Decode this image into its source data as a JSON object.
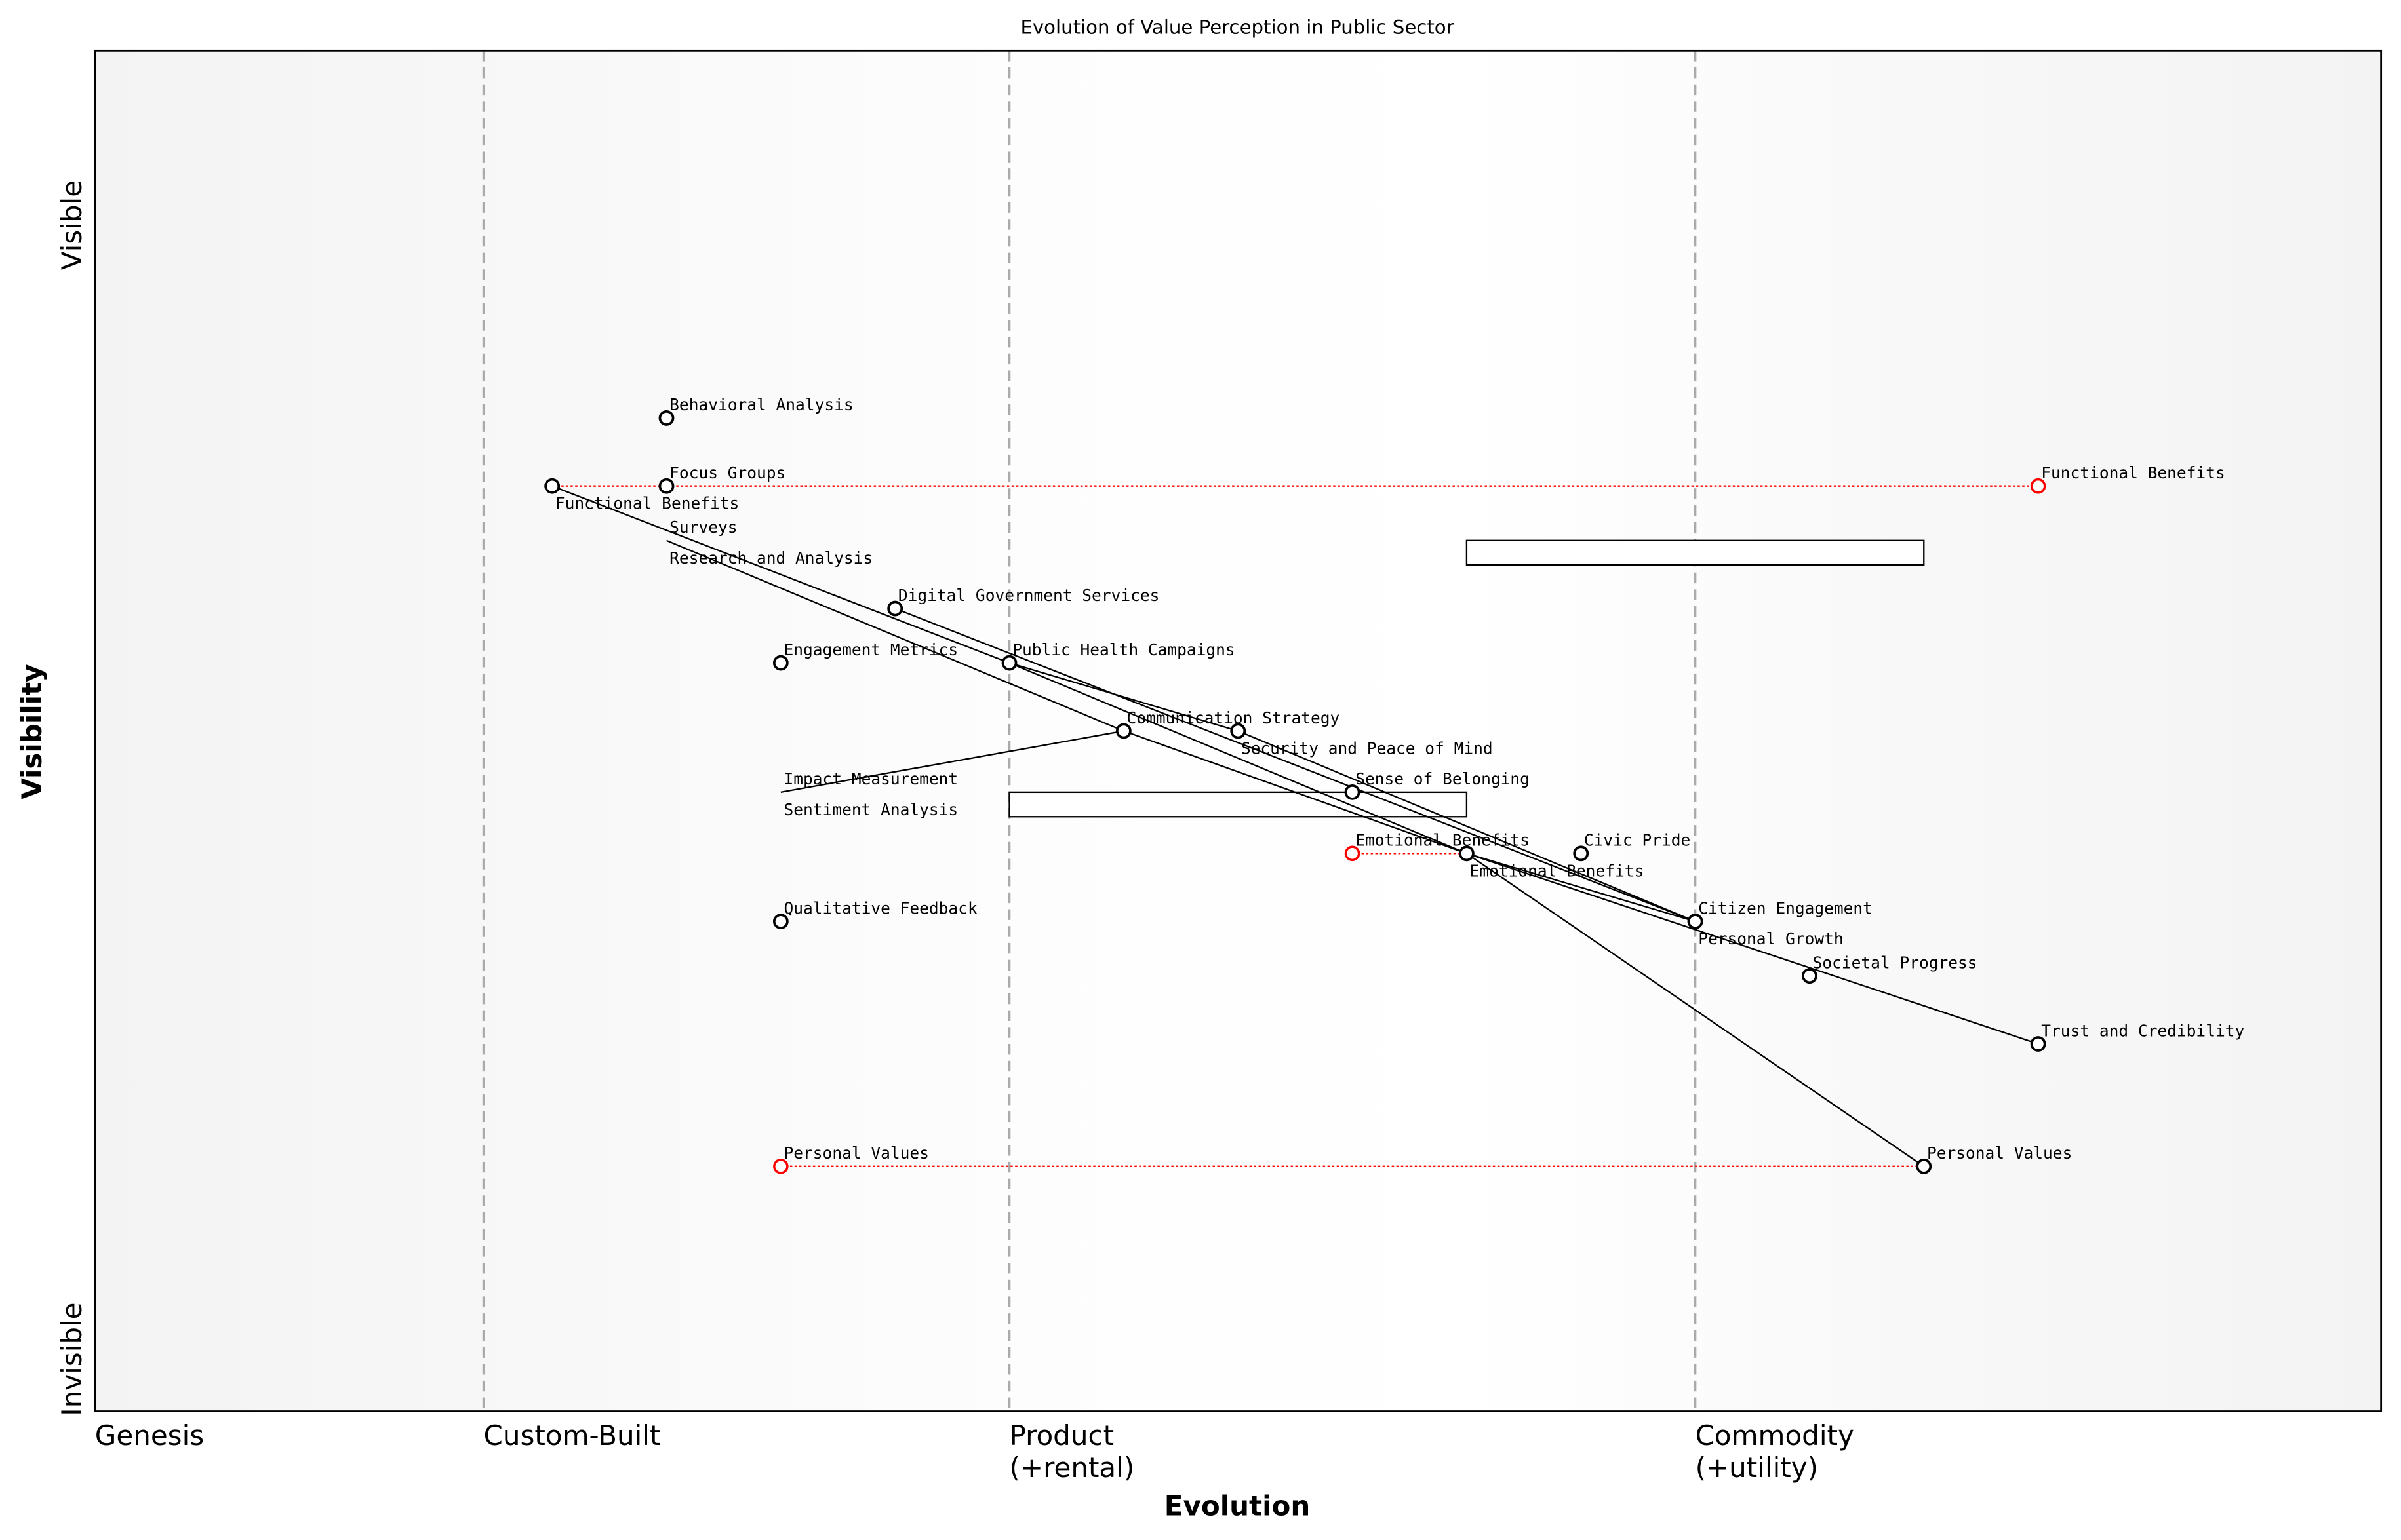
{
  "chart_data": {
    "type": "wardley-map",
    "title": "Evolution of Value Perception in Public Sector",
    "xlabel": "Evolution",
    "ylabel": "Visibility",
    "y_ticks": [
      "Visible",
      "Invisible"
    ],
    "stages": [
      {
        "label": "Genesis",
        "at": 0.0
      },
      {
        "label": "Custom-Built",
        "at": 0.17
      },
      {
        "label": "Product",
        "label2": "(+rental)",
        "at": 0.4
      },
      {
        "label": "Commodity",
        "label2": "(+utility)",
        "at": 0.7
      }
    ],
    "components": [
      {
        "name": "Behavioral Analysis",
        "evolution": 0.25,
        "visibility": 0.73,
        "marker": true
      },
      {
        "name": "Focus Groups",
        "evolution": 0.25,
        "visibility": 0.68,
        "marker": true
      },
      {
        "name": "Functional Benefits",
        "evolution": 0.2,
        "visibility": 0.68,
        "marker": true
      },
      {
        "name": "Surveys",
        "evolution": 0.25,
        "visibility": 0.64,
        "marker": false
      },
      {
        "name": "Research and Analysis",
        "evolution": 0.25,
        "visibility": 0.64,
        "marker": false
      },
      {
        "name": "Digital Government Services",
        "evolution": 0.35,
        "visibility": 0.59,
        "marker": true
      },
      {
        "name": "Engagement Metrics",
        "evolution": 0.3,
        "visibility": 0.55,
        "marker": true
      },
      {
        "name": "Public Health Campaigns",
        "evolution": 0.4,
        "visibility": 0.55,
        "marker": true
      },
      {
        "name": "Communication Strategy",
        "evolution": 0.45,
        "visibility": 0.5,
        "marker": true
      },
      {
        "name": "Security and Peace of Mind",
        "evolution": 0.5,
        "visibility": 0.5,
        "marker": true
      },
      {
        "name": "Impact Measurement",
        "evolution": 0.3,
        "visibility": 0.455,
        "marker": false
      },
      {
        "name": "Sentiment Analysis",
        "evolution": 0.3,
        "visibility": 0.455,
        "marker": false
      },
      {
        "name": "Sense of Belonging",
        "evolution": 0.55,
        "visibility": 0.455,
        "marker": true
      },
      {
        "name": "Emotional Benefits",
        "evolution": 0.6,
        "visibility": 0.41,
        "marker": true
      },
      {
        "name": "Civic Pride",
        "evolution": 0.65,
        "visibility": 0.41,
        "marker": true
      },
      {
        "name": "Citizen Engagement",
        "evolution": 0.7,
        "visibility": 0.36,
        "marker": true
      },
      {
        "name": "Personal Growth",
        "evolution": 0.7,
        "visibility": 0.36,
        "marker": true
      },
      {
        "name": "Qualitative Feedback",
        "evolution": 0.3,
        "visibility": 0.36,
        "marker": true
      },
      {
        "name": "Societal Progress",
        "evolution": 0.75,
        "visibility": 0.32,
        "marker": true
      },
      {
        "name": "Trust and Credibility",
        "evolution": 0.85,
        "visibility": 0.27,
        "marker": true
      },
      {
        "name": "Personal Values",
        "evolution": 0.8,
        "visibility": 0.18,
        "marker": true
      }
    ],
    "evolve": [
      {
        "name": "Functional Benefits",
        "from": 0.2,
        "to": 0.85,
        "visibility": 0.68
      },
      {
        "name": "Emotional Benefits",
        "from": 0.55,
        "to": 0.6,
        "visibility": 0.41
      },
      {
        "name": "Personal Values",
        "from": 0.3,
        "to": 0.8,
        "visibility": 0.18
      }
    ],
    "links": [
      [
        "Functional Benefits",
        "Public Health Campaigns"
      ],
      [
        "Public Health Campaigns",
        "Security and Peace of Mind"
      ],
      [
        "Public Health Campaigns",
        "Emotional Benefits"
      ],
      [
        "Digital Government Services",
        "Citizen Engagement"
      ],
      [
        "Research and Analysis",
        "Communication Strategy"
      ],
      [
        "Sentiment Analysis",
        "Communication Strategy"
      ],
      [
        "Communication Strategy",
        "Emotional Benefits"
      ],
      [
        "Security and Peace of Mind",
        "Citizen Engagement"
      ],
      [
        "Emotional Benefits",
        "Personal Growth"
      ],
      [
        "Emotional Benefits",
        "Trust and Credibility"
      ],
      [
        "Emotional Benefits",
        "Personal Values"
      ]
    ],
    "pipelines": [
      {
        "visibility": 0.64,
        "from": 0.6,
        "to": 0.8
      },
      {
        "visibility": 0.455,
        "from": 0.4,
        "to": 0.6
      }
    ],
    "colors": {
      "evolve": "#ff0000",
      "stage_line": "#aaaaaa",
      "component": "#000000"
    }
  }
}
